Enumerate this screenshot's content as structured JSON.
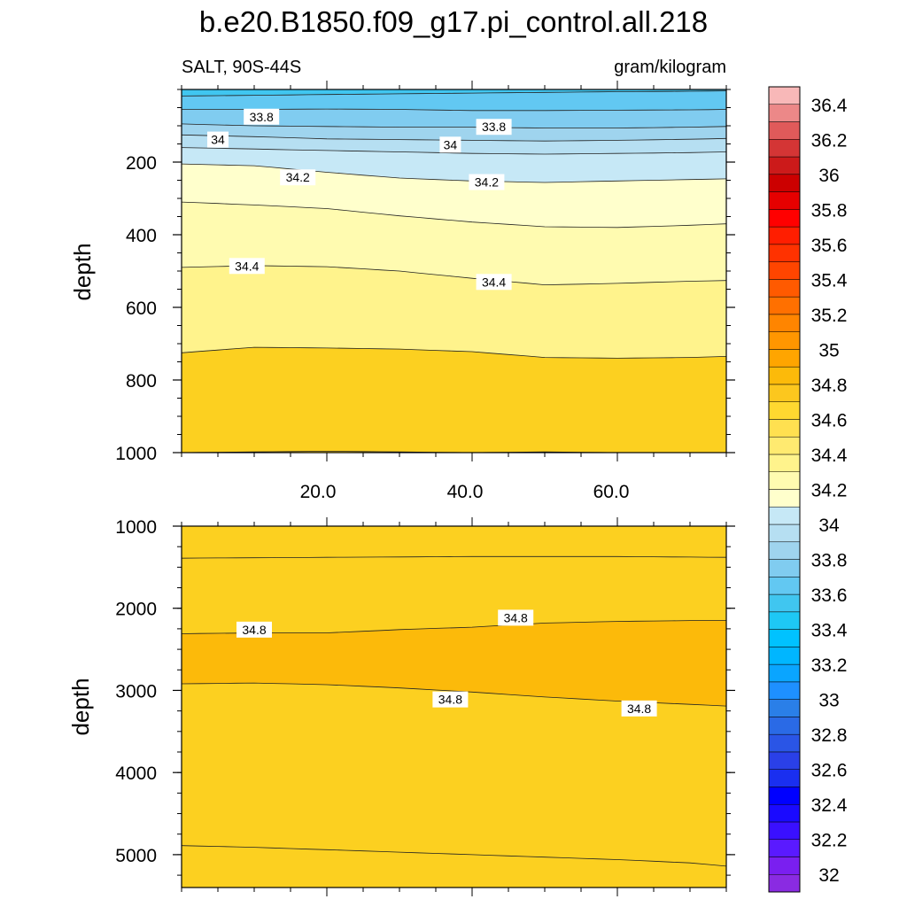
{
  "title": "b.e20.B1850.f09_g17.pi_control.all.218",
  "chart_data": {
    "type": "contour",
    "title": "b.e20.B1850.f09_g17.pi_control.all.218",
    "left_string": "SALT, 90S-44S",
    "right_string": "gram/kilogram",
    "x_tick_labels": [
      "20.0",
      "40.0",
      "60.0"
    ],
    "colorbar": {
      "levels": [
        32,
        32.1,
        32.2,
        32.3,
        32.4,
        32.5,
        32.6,
        32.7,
        32.8,
        32.9,
        33,
        33.1,
        33.2,
        33.3,
        33.4,
        33.5,
        33.6,
        33.7,
        33.8,
        33.9,
        34,
        34.1,
        34.2,
        34.3,
        34.4,
        34.5,
        34.6,
        34.7,
        34.8,
        34.9,
        35,
        35.1,
        35.2,
        35.3,
        35.4,
        35.5,
        35.6,
        35.7,
        35.8,
        35.9,
        36,
        36.1,
        36.2,
        36.3,
        36.4,
        36.5
      ],
      "labels": [
        "32",
        "32.2",
        "32.4",
        "32.6",
        "32.8",
        "33",
        "33.2",
        "33.4",
        "33.6",
        "33.8",
        "34",
        "34.2",
        "34.4",
        "34.6",
        "34.8",
        "35",
        "35.2",
        "35.4",
        "35.6",
        "35.8",
        "36",
        "36.2",
        "36.4"
      ],
      "colors": [
        "#8a2be2",
        "#7a1ff0",
        "#5a1aff",
        "#3a10ff",
        "#1a0aff",
        "#0000ff",
        "#1a2ff0",
        "#2a40e8",
        "#2a55e6",
        "#2a6ae6",
        "#2a7fe8",
        "#1e90ff",
        "#0aa5ff",
        "#00b6ff",
        "#00c2ff",
        "#1ec8f5",
        "#40c6f0",
        "#62c8f2",
        "#80ccf0",
        "#9fd4ee",
        "#b6dff2",
        "#c6e8f6",
        "#ffffcc",
        "#fffbb0",
        "#fff38c",
        "#ffea70",
        "#ffe050",
        "#ffd830",
        "#fcc71e",
        "#fcba0a",
        "#ffa500",
        "#ff9600",
        "#ff8500",
        "#ff7000",
        "#ff5a00",
        "#ff4500",
        "#ff3200",
        "#ff1e00",
        "#ff0000",
        "#e60000",
        "#cc0000",
        "#cc1a1a",
        "#d43535",
        "#e05a5a",
        "#ec8888",
        "#f8b8b8"
      ]
    },
    "panels": [
      {
        "name": "upper",
        "ylabel": "depth",
        "y_range": [
          0,
          1000
        ],
        "y_ticks": [
          200,
          400,
          600,
          800,
          1000
        ],
        "y_tick_labels": [
          "200",
          "400",
          "600",
          "800",
          "1000"
        ],
        "x_range": [
          0,
          75
        ],
        "contours": [
          {
            "level": 33.7,
            "depths": [
              [
                0,
                18
              ],
              [
                10,
                16
              ],
              [
                20,
                14
              ],
              [
                30,
                12
              ],
              [
                40,
                10
              ],
              [
                50,
                8
              ],
              [
                60,
                6
              ],
              [
                70,
                5
              ],
              [
                75,
                4
              ]
            ]
          },
          {
            "level": 33.8,
            "depths": [
              [
                0,
                55
              ],
              [
                10,
                55
              ],
              [
                20,
                54
              ],
              [
                30,
                55
              ],
              [
                40,
                58
              ],
              [
                50,
                58
              ],
              [
                60,
                57
              ],
              [
                70,
                56
              ],
              [
                75,
                55
              ]
            ]
          },
          {
            "level": 33.9,
            "depths": [
              [
                0,
                95
              ],
              [
                10,
                100
              ],
              [
                20,
                102
              ],
              [
                30,
                104
              ],
              [
                40,
                104
              ],
              [
                50,
                106
              ],
              [
                60,
                106
              ],
              [
                70,
                104
              ],
              [
                75,
                102
              ]
            ]
          },
          {
            "level": 34.0,
            "depths": [
              [
                0,
                125
              ],
              [
                10,
                130
              ],
              [
                20,
                136
              ],
              [
                30,
                138
              ],
              [
                40,
                140
              ],
              [
                50,
                142
              ],
              [
                60,
                140
              ],
              [
                70,
                137
              ],
              [
                75,
                135
              ]
            ]
          },
          {
            "level": 34.1,
            "depths": [
              [
                0,
                160
              ],
              [
                10,
                164
              ],
              [
                20,
                168
              ],
              [
                30,
                172
              ],
              [
                40,
                176
              ],
              [
                50,
                178
              ],
              [
                60,
                176
              ],
              [
                70,
                174
              ],
              [
                75,
                172
              ]
            ]
          },
          {
            "level": 34.2,
            "depths": [
              [
                0,
                205
              ],
              [
                10,
                210
              ],
              [
                20,
                228
              ],
              [
                30,
                244
              ],
              [
                40,
                252
              ],
              [
                50,
                256
              ],
              [
                60,
                252
              ],
              [
                70,
                248
              ],
              [
                75,
                246
              ]
            ]
          },
          {
            "level": 34.3,
            "depths": [
              [
                0,
                310
              ],
              [
                10,
                318
              ],
              [
                20,
                328
              ],
              [
                30,
                348
              ],
              [
                40,
                365
              ],
              [
                50,
                378
              ],
              [
                60,
                380
              ],
              [
                70,
                374
              ],
              [
                75,
                370
              ]
            ]
          },
          {
            "level": 34.4,
            "depths": [
              [
                0,
                490
              ],
              [
                10,
                485
              ],
              [
                20,
                488
              ],
              [
                30,
                500
              ],
              [
                40,
                520
              ],
              [
                50,
                538
              ],
              [
                60,
                534
              ],
              [
                70,
                528
              ],
              [
                75,
                526
              ]
            ]
          },
          {
            "level": 34.5,
            "depths": [
              [
                0,
                725
              ],
              [
                10,
                710
              ],
              [
                20,
                712
              ],
              [
                30,
                715
              ],
              [
                40,
                722
              ],
              [
                50,
                738
              ],
              [
                60,
                740
              ],
              [
                70,
                738
              ],
              [
                75,
                735
              ]
            ]
          },
          {
            "level": 34.6,
            "depths": [
              [
                0,
                1000
              ],
              [
                10,
                998
              ],
              [
                20,
                996
              ],
              [
                30,
                998
              ],
              [
                40,
                1000
              ],
              [
                50,
                998
              ],
              [
                60,
                1000
              ],
              [
                75,
                1000
              ]
            ]
          }
        ],
        "contour_labels": [
          {
            "text": "33.8",
            "x": 11,
            "depth": 75
          },
          {
            "text": "33.8",
            "x": 43,
            "depth": 103
          },
          {
            "text": "34",
            "x": 5,
            "depth": 138
          },
          {
            "text": "34",
            "x": 37,
            "depth": 152
          },
          {
            "text": "34.2",
            "x": 16,
            "depth": 242
          },
          {
            "text": "34.2",
            "x": 42,
            "depth": 255
          },
          {
            "text": "34.4",
            "x": 9,
            "depth": 486
          },
          {
            "text": "34.4",
            "x": 43,
            "depth": 530
          }
        ]
      },
      {
        "name": "lower",
        "ylabel": "depth",
        "y_range": [
          1000,
          5400
        ],
        "y_ticks": [
          1000,
          2000,
          3000,
          4000,
          5000
        ],
        "y_tick_labels": [
          "1000",
          "2000",
          "3000",
          "4000",
          "5000"
        ],
        "x_range": [
          0,
          75
        ],
        "contours": [
          {
            "level": 34.7,
            "depths": [
              [
                0,
                1000
              ],
              [
                20,
                1000
              ],
              [
                40,
                1000
              ],
              [
                60,
                1000
              ],
              [
                75,
                1000
              ]
            ]
          },
          {
            "level": 34.75,
            "depths": [
              [
                0,
                1390
              ],
              [
                20,
                1380
              ],
              [
                40,
                1370
              ],
              [
                60,
                1370
              ],
              [
                75,
                1380
              ]
            ]
          },
          {
            "level": 34.8,
            "depths": [
              [
                0,
                2310
              ],
              [
                10,
                2300
              ],
              [
                20,
                2300
              ],
              [
                30,
                2260
              ],
              [
                40,
                2230
              ],
              [
                50,
                2180
              ],
              [
                60,
                2160
              ],
              [
                70,
                2150
              ],
              [
                75,
                2150
              ]
            ]
          },
          {
            "level": 34.8,
            "depths": [
              [
                0,
                2920
              ],
              [
                10,
                2910
              ],
              [
                20,
                2930
              ],
              [
                30,
                2970
              ],
              [
                40,
                3020
              ],
              [
                50,
                3080
              ],
              [
                60,
                3130
              ],
              [
                70,
                3170
              ],
              [
                75,
                3190
              ]
            ]
          },
          {
            "level": 34.7,
            "depths": [
              [
                0,
                4890
              ],
              [
                10,
                4910
              ],
              [
                20,
                4940
              ],
              [
                30,
                4970
              ],
              [
                40,
                5000
              ],
              [
                50,
                5030
              ],
              [
                60,
                5060
              ],
              [
                70,
                5100
              ],
              [
                75,
                5140
              ]
            ]
          }
        ],
        "contour_labels": [
          {
            "text": "34.8",
            "x": 10,
            "depth": 2260
          },
          {
            "text": "34.8",
            "x": 46,
            "depth": 2115
          },
          {
            "text": "34.8",
            "x": 37,
            "depth": 3110
          },
          {
            "text": "34.8",
            "x": 63,
            "depth": 3220
          }
        ]
      }
    ]
  }
}
